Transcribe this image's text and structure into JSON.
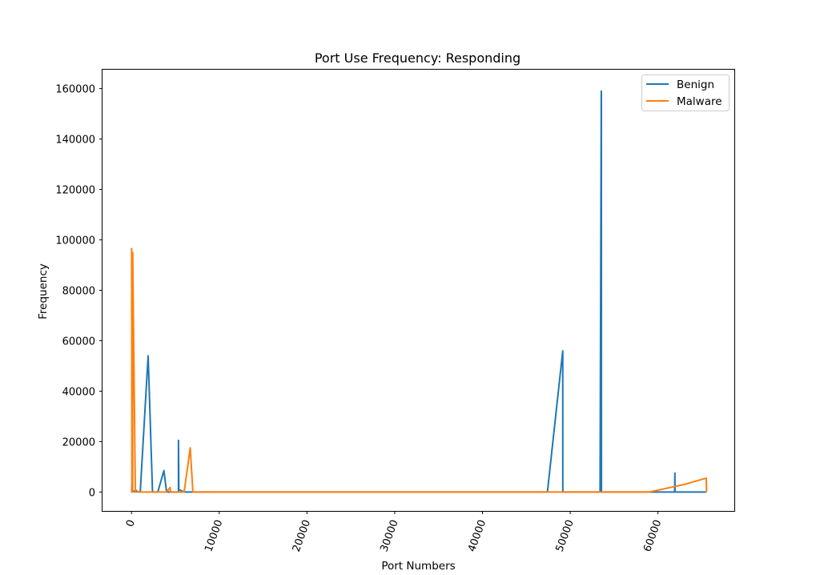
{
  "chart_data": {
    "type": "line",
    "title": "Port Use Frequency: Responding",
    "xlabel": "Port Numbers",
    "ylabel": "Frequency",
    "xlim": [
      -3300,
      68700
    ],
    "ylim": [
      -7500,
      167500
    ],
    "x_ticks": [
      0,
      10000,
      20000,
      30000,
      40000,
      50000,
      60000
    ],
    "x_tick_labels": [
      "0",
      "10000",
      "20000",
      "30000",
      "40000",
      "50000",
      "60000"
    ],
    "y_ticks": [
      0,
      20000,
      40000,
      60000,
      80000,
      100000,
      120000,
      140000,
      160000
    ],
    "y_tick_labels": [
      "0",
      "20000",
      "40000",
      "60000",
      "80000",
      "100000",
      "120000",
      "140000",
      "160000"
    ],
    "grid": false,
    "legend_position": "top-right",
    "series": [
      {
        "name": "Benign",
        "color": "#1f77b4",
        "x": [
          21,
          53,
          80,
          135,
          139,
          443,
          445,
          1000,
          1900,
          2400,
          3000,
          3700,
          4000,
          5355,
          5357,
          5400,
          6000,
          7000,
          10000,
          20000,
          30000,
          40000,
          47400,
          49150,
          49156,
          49200,
          53400,
          53540,
          53545,
          53550,
          53560,
          53600,
          55000,
          60000,
          61900,
          61930,
          61940,
          62000,
          65500
        ],
        "y": [
          0,
          3000,
          500,
          0,
          500,
          0,
          200,
          0,
          54000,
          0,
          0,
          8500,
          0,
          0,
          20500,
          1000,
          0,
          0,
          0,
          0,
          0,
          0,
          0,
          56000,
          0,
          0,
          0,
          159000,
          0,
          158000,
          0,
          0,
          0,
          0,
          0,
          7500,
          0,
          0,
          0
        ]
      },
      {
        "name": "Malware",
        "color": "#ff7f0e",
        "x": [
          0,
          22,
          53,
          54,
          80,
          100,
          135,
          139,
          443,
          445,
          800,
          2000,
          4000,
          4400,
          4450,
          5000,
          6000,
          6700,
          7000,
          10000,
          20000,
          30000,
          40000,
          50000,
          57000,
          58000,
          59000,
          63000,
          65500,
          65535
        ],
        "y": [
          96000,
          96500,
          0,
          3000,
          0,
          2000,
          0,
          95000,
          0,
          1000,
          0,
          0,
          0,
          1800,
          0,
          0,
          0,
          17500,
          0,
          0,
          0,
          0,
          0,
          0,
          0,
          0,
          0,
          3000,
          5500,
          0
        ]
      }
    ]
  }
}
